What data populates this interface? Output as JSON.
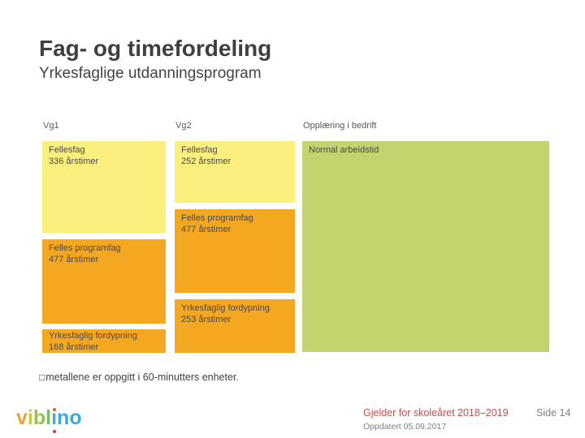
{
  "slide": {
    "title": "Fag- og timefordeling",
    "subtitle": "Yrkesfaglige utdanningsprogram",
    "note_glyph": "□",
    "note_text": "metallene er oppgitt i 60-minutters enheter."
  },
  "colors": {
    "title_text": "#3F3F3F",
    "subtitle_text": "#444444",
    "header_text": "#595959",
    "block_text": "#4A4A4A",
    "note_text": "#404040",
    "fellesfag_yellow": "#FBF07E",
    "programfag_orange": "#F4A721",
    "bedrift_green": "#C4D36E",
    "accent_red": "#C0504D",
    "updated_gray": "#7F7F7F",
    "page_gray": "#808080",
    "logo_dot_top": "#D2622F",
    "logo_dot_bottom": "#C24642"
  },
  "chart_data": {
    "type": "table",
    "title": "Fag- og timefordeling — Yrkesfaglige utdanningsprogram",
    "columns": [
      {
        "header": "Vg1",
        "blocks": [
          {
            "label": "Fellesfag",
            "hours": "336 årstimer",
            "color": "#FBF07E"
          },
          {
            "label": "Felles programfag",
            "hours": "477 årstimer",
            "color": "#F4A721"
          },
          {
            "label": "Yrkesfaglig fordypning",
            "hours": "168 årstimer",
            "color": "#F4A721"
          }
        ]
      },
      {
        "header": "Vg2",
        "blocks": [
          {
            "label": "Fellesfag",
            "hours": "252 årstimer",
            "color": "#FBF07E"
          },
          {
            "label": "Felles programfag",
            "hours": "477 årstimer",
            "color": "#F4A721"
          },
          {
            "label": "Yrkesfaglig fordypning",
            "hours": "253 årstimer",
            "color": "#F4A721"
          }
        ]
      },
      {
        "header": "Opplæring i bedrift",
        "blocks": [
          {
            "label": "Normal arbeidstid",
            "hours": "",
            "color": "#C4D36E"
          }
        ]
      }
    ]
  },
  "footer": {
    "validity": "Gjelder for skoleåret 2018–2019",
    "updated": "Oppdatert 05.09.2017",
    "page": "Side 14",
    "logo": {
      "letters": [
        {
          "ch": "v",
          "color": "#EAA33B"
        },
        {
          "ch": "i",
          "color": "#C2CC40"
        },
        {
          "ch": "b",
          "color": "#97C24B"
        },
        {
          "ch": "l",
          "color": "#6FBC6C"
        },
        {
          "ch": "ı",
          "color": "#45AFC4"
        },
        {
          "ch": "n",
          "color": "#39A9DB"
        },
        {
          "ch": "o",
          "color": "#39A9DB"
        }
      ]
    }
  }
}
